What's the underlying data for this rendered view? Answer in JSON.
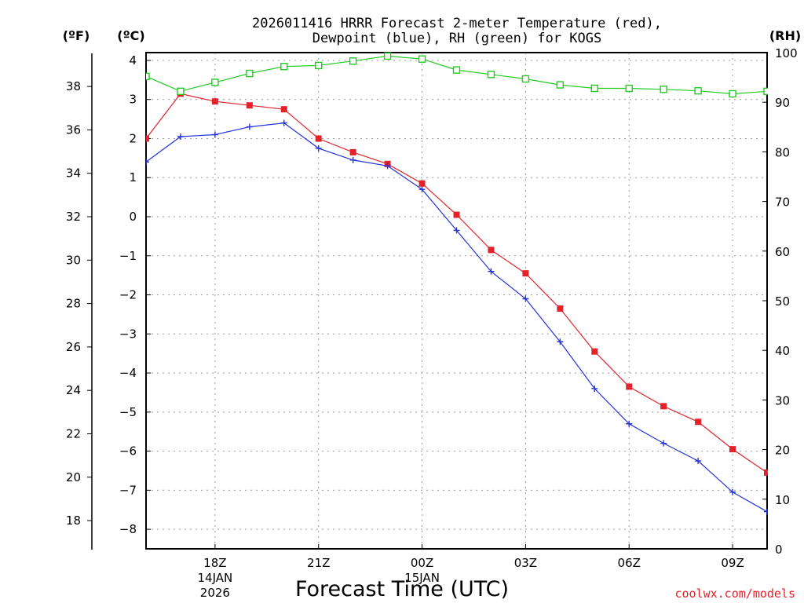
{
  "chart_data": {
    "type": "line",
    "title_line1": "2026011416 HRRR Forecast 2-meter Temperature (red),",
    "title_line2": "Dewpoint (blue), RH (green) for KOGS",
    "xlabel": "Forecast Time (UTC)",
    "credit": "coolwx.com/models",
    "unit_f": "(ºF)",
    "unit_c": "(ºC)",
    "unit_rh": "(RH)",
    "x_hours": [
      16,
      17,
      18,
      19,
      20,
      21,
      22,
      23,
      24,
      25,
      26,
      27,
      28,
      29,
      30,
      31,
      32,
      33,
      34
    ],
    "x_range": [
      16,
      34
    ],
    "x_ticks": [
      {
        "hour": 18,
        "lines": [
          "18Z",
          "14JAN",
          "2026"
        ]
      },
      {
        "hour": 21,
        "lines": [
          "21Z"
        ]
      },
      {
        "hour": 24,
        "lines": [
          "00Z",
          "15JAN"
        ]
      },
      {
        "hour": 27,
        "lines": [
          "03Z"
        ]
      },
      {
        "hour": 30,
        "lines": [
          "06Z"
        ]
      },
      {
        "hour": 33,
        "lines": [
          "09Z"
        ]
      }
    ],
    "celsius_axis": {
      "range": [
        -8.5,
        4.2
      ],
      "ticks": [
        "4",
        "3",
        "2",
        "1",
        "0",
        "−1",
        "−2",
        "−3",
        "−4",
        "−5",
        "−6",
        "−7",
        "−8"
      ],
      "tick_values": [
        4,
        3,
        2,
        1,
        0,
        -1,
        -2,
        -3,
        -4,
        -5,
        -6,
        -7,
        -8
      ]
    },
    "fahrenheit_axis": {
      "range": [
        16.7,
        39.56
      ],
      "ticks": [
        "38",
        "36",
        "34",
        "32",
        "30",
        "28",
        "26",
        "24",
        "22",
        "20",
        "18"
      ],
      "tick_values": [
        38,
        36,
        34,
        32,
        30,
        28,
        26,
        24,
        22,
        20,
        18
      ]
    },
    "rh_axis": {
      "range": [
        0,
        100
      ],
      "ticks": [
        "100",
        "90",
        "80",
        "70",
        "60",
        "50",
        "40",
        "30",
        "20",
        "10",
        "0"
      ],
      "tick_values": [
        100,
        90,
        80,
        70,
        60,
        50,
        40,
        30,
        20,
        10,
        0
      ]
    },
    "series": [
      {
        "name": "Temperature",
        "units": "C",
        "color": "#e4222a",
        "marker": "filled-square",
        "values": [
          2.0,
          3.15,
          2.95,
          2.85,
          2.75,
          2.0,
          1.65,
          1.35,
          0.85,
          0.05,
          -0.85,
          -1.45,
          -2.35,
          -3.45,
          -4.35,
          -4.85,
          -5.25,
          -5.95,
          -6.55
        ]
      },
      {
        "name": "Dewpoint",
        "units": "C",
        "color": "#2233dd",
        "marker": "plus",
        "values": [
          1.4,
          2.05,
          2.1,
          2.3,
          2.4,
          1.75,
          1.45,
          1.3,
          0.7,
          -0.35,
          -1.4,
          -2.1,
          -3.2,
          -4.4,
          -5.3,
          -5.8,
          -6.25,
          -7.05,
          -7.55
        ]
      },
      {
        "name": "RH",
        "units": "%",
        "color": "#22cc22",
        "marker": "open-square",
        "values": [
          95.2,
          92.2,
          94.0,
          95.8,
          97.2,
          97.4,
          98.3,
          99.3,
          98.7,
          96.5,
          95.6,
          94.7,
          93.5,
          92.8,
          92.8,
          92.6,
          92.3,
          91.7,
          92.2
        ]
      }
    ]
  }
}
